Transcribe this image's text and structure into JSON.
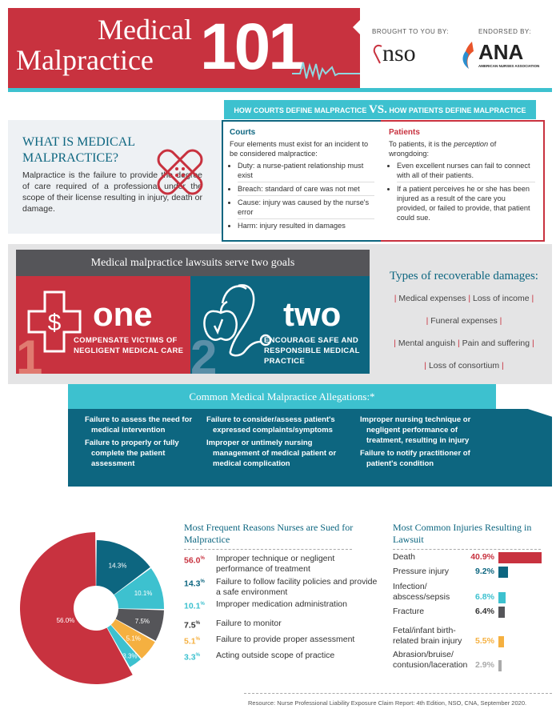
{
  "header": {
    "title_line1": "Medical",
    "title_line2": "Malpractice",
    "title_number": "101",
    "brought_by": "BROUGHT TO YOU BY:",
    "sponsor": "nso",
    "endorsed_by": "ENDORSED BY:",
    "endorser": "ANA",
    "endorser_full": "AMERICAN NURSES ASSOCIATION"
  },
  "versus": {
    "left": "HOW COURTS DEFINE MALPRACTICE",
    "vs": "VS.",
    "right": "HOW PATIENTS DEFINE MALPRACTICE"
  },
  "what": {
    "title": "WHAT IS MEDICAL MALPRACTICE?",
    "text": "Malpractice is the failure to provide the degree of care required of a professional under the scope of their license resulting in injury, death or damage."
  },
  "courts": {
    "heading": "Courts",
    "intro": "Four elements must exist for an incident to be considered malpractice:",
    "items": [
      "Duty: a nurse-patient relationship must exist",
      "Breach: standard of care was not met",
      "Cause: injury was caused by the nurse's error",
      "Harm: injury resulted in damages"
    ]
  },
  "patients": {
    "heading": "Patients",
    "intro_pre": "To patients, it is the ",
    "intro_em": "perception",
    "intro_post": " of wrongdoing:",
    "items": [
      "Even excellent nurses can fail to connect with all of their patients.",
      "If a patient perceives he or she has been injured as a result of the care you provided, or failed to provide, that patient could sue."
    ]
  },
  "goals": {
    "heading": "Medical malpractice lawsuits serve two goals",
    "one": {
      "number": "1",
      "word": "one",
      "text": "COMPENSATE VICTIMS OF NEGLIGENT MEDICAL CARE"
    },
    "two": {
      "number": "2",
      "word": "two",
      "text": "ENCOURAGE SAFE AND RESPONSIBLE MEDICAL PRACTICE"
    }
  },
  "damages": {
    "title": "Types of recoverable damages:",
    "lines": [
      [
        "Medical expenses",
        "Loss of income"
      ],
      [
        "Funeral expenses"
      ],
      [
        "Mental anguish",
        "Pain and suffering"
      ],
      [
        "Loss of consortium"
      ]
    ]
  },
  "allegations": {
    "title": "Common Medical Malpractice Allegations:*",
    "columns": [
      [
        "Failure to assess the need for medical intervention",
        "Failure to properly or fully complete the patient assessment"
      ],
      [
        "Failure to consider/assess patient's expressed complaints/symptoms",
        "Improper or untimely nursing management of medical patient or medical complication"
      ],
      [
        "Improper nursing technique or negligent performance of treatment, resulting in injury",
        "Failure to notify practitioner of patient's condition"
      ]
    ]
  },
  "colors": {
    "red": "#c8323f",
    "teal": "#0d6680",
    "cyan": "#3dc1cf",
    "gray": "#555559",
    "orange": "#f5b040",
    "lightgray": "#aaaaaa"
  },
  "chart_data": [
    {
      "type": "pie",
      "title": "Most Frequent Reasons Nurses are Sued for Malpractice",
      "unit": "%",
      "categories": [
        "Improper technique or negligent performance of treatment",
        "Failure to follow facility policies and provide a safe environment",
        "Improper medication administration",
        "Failure to monitor",
        "Failure to provide proper assessment",
        "Acting outside scope of practice"
      ],
      "values": [
        56.0,
        14.3,
        10.1,
        7.5,
        5.1,
        3.3
      ],
      "labels": [
        "56.0",
        "14.3",
        "10.1",
        "7.5",
        "5.1",
        "3.3"
      ],
      "colors": [
        "#c8323f",
        "#0d6680",
        "#3dc1cf",
        "#555559",
        "#f5b040",
        "#3dc1cf"
      ]
    },
    {
      "type": "bar",
      "orientation": "horizontal",
      "title": "Most Common Injuries Resulting in Lawsuit",
      "unit": "%",
      "categories": [
        "Death",
        "Pressure injury",
        "Infection/ abscess/sepsis",
        "Fracture",
        "Fetal/infant birth-related brain injury",
        "Abrasion/bruise/ contusion/laceration"
      ],
      "values": [
        40.9,
        9.2,
        6.8,
        6.4,
        5.5,
        2.9
      ],
      "labels": [
        "40.9",
        "9.2",
        "6.8",
        "6.4",
        "5.5",
        "2.9"
      ],
      "colors": [
        "#c8323f",
        "#0d6680",
        "#3dc1cf",
        "#555559",
        "#f5b040",
        "#aaaaaa"
      ]
    }
  ],
  "resource": "Resource: Nurse Professional Liability Exposure Claim Report: 4th Edition, NSO, CNA, September 2020."
}
